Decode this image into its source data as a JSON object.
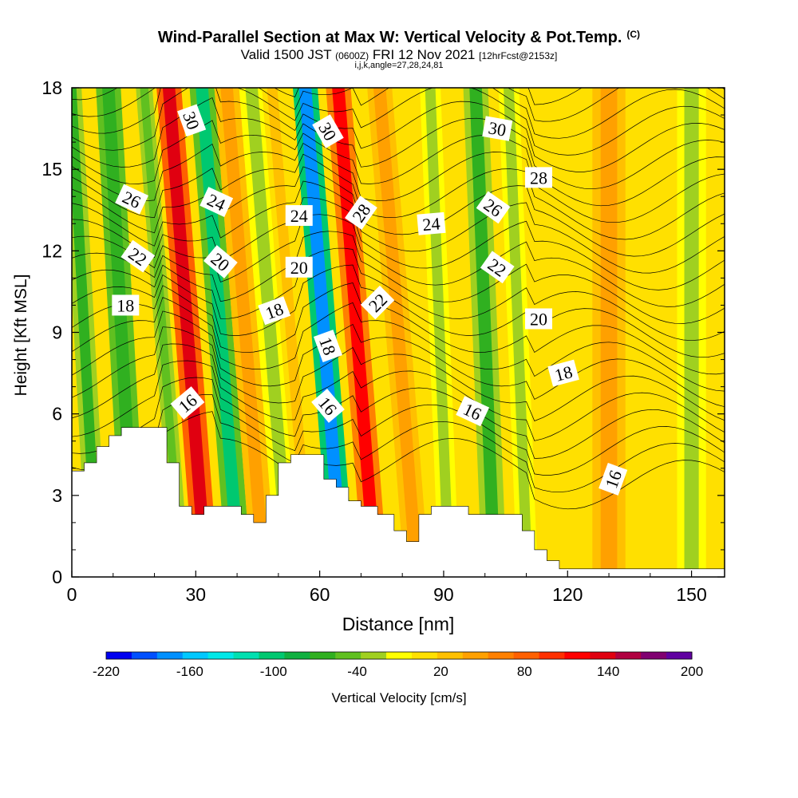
{
  "header": {
    "title": "Wind-Parallel Section at Max W: Vertical Velocity & Pot.Temp.",
    "title_badge": "(C)",
    "valid_prefix": "Valid 1500 JST",
    "valid_zulu": "(0600Z)",
    "valid_suffix": "FRI 12 Nov 2021",
    "forecast": "[12hrFcst@2153z]",
    "grid_info": "i,j,k,angle=27,28,24,81"
  },
  "chart_data": {
    "type": "heatmap",
    "xlabel": "Distance [nm]",
    "ylabel": "Height [Kft MSL]",
    "xlim": [
      0,
      158
    ],
    "ylim": [
      0,
      18
    ],
    "x_ticks": [
      "0",
      "30",
      "60",
      "90",
      "120",
      "150"
    ],
    "y_ticks": [
      "0",
      "3",
      "6",
      "9",
      "12",
      "15",
      "18"
    ],
    "x_tick_values": [
      0,
      30,
      60,
      90,
      120,
      150
    ],
    "y_tick_values": [
      0,
      3,
      6,
      9,
      12,
      15,
      18
    ],
    "colorbar": {
      "label": "Vertical Velocity [cm/s]",
      "tick_labels": [
        "-220",
        "-160",
        "-100",
        "-40",
        "20",
        "80",
        "140",
        "200"
      ],
      "tick_values": [
        -220,
        -160,
        -100,
        -40,
        20,
        80,
        140,
        200
      ],
      "min": -220,
      "max": 200,
      "colors": [
        "#0000f0",
        "#0050ff",
        "#0090ff",
        "#00c8ff",
        "#00e8e8",
        "#00e0b0",
        "#00c870",
        "#10b040",
        "#30b020",
        "#60c020",
        "#a0d020",
        "#ffff00",
        "#ffe000",
        "#ffc000",
        "#ffa000",
        "#ff8000",
        "#ff6000",
        "#ff3000",
        "#ff0000",
        "#e00010",
        "#b00040",
        "#800070",
        "#6000a0"
      ]
    },
    "velocity_bands": [
      {
        "center_x": 3,
        "width": 5,
        "value": -60
      },
      {
        "center_x": 12,
        "width": 6,
        "value": -70
      },
      {
        "center_x": 22,
        "width": 4,
        "value": -40
      },
      {
        "center_x": 28,
        "width": 6,
        "value": 140
      },
      {
        "center_x": 36,
        "width": 6,
        "value": -100
      },
      {
        "center_x": 42,
        "width": 6,
        "value": 40
      },
      {
        "center_x": 48,
        "width": 6,
        "value": -30
      },
      {
        "center_x": 53,
        "width": 5,
        "value": 30
      },
      {
        "center_x": 61,
        "width": 6,
        "value": -170
      },
      {
        "center_x": 69,
        "width": 6,
        "value": 120
      },
      {
        "center_x": 79,
        "width": 6,
        "value": 40
      },
      {
        "center_x": 89,
        "width": 5,
        "value": -30
      },
      {
        "center_x": 100,
        "width": 6,
        "value": -60
      },
      {
        "center_x": 108,
        "width": 5,
        "value": -30
      },
      {
        "center_x": 130,
        "width": 8,
        "value": 50
      },
      {
        "center_x": 150,
        "width": 7,
        "value": -30
      }
    ],
    "terrain": [
      [
        0,
        3.9
      ],
      [
        3,
        4.2
      ],
      [
        6,
        4.8
      ],
      [
        9,
        5.2
      ],
      [
        12,
        5.5
      ],
      [
        22,
        5.5
      ],
      [
        23,
        4.2
      ],
      [
        26,
        2.6
      ],
      [
        29,
        2.3
      ],
      [
        32,
        2.6
      ],
      [
        38,
        2.6
      ],
      [
        41,
        2.3
      ],
      [
        44,
        2.0
      ],
      [
        47,
        3.0
      ],
      [
        50,
        4.2
      ],
      [
        53,
        4.5
      ],
      [
        58,
        4.5
      ],
      [
        61,
        3.6
      ],
      [
        64,
        3.3
      ],
      [
        67,
        2.8
      ],
      [
        70,
        2.6
      ],
      [
        74,
        2.3
      ],
      [
        78,
        1.7
      ],
      [
        81,
        1.3
      ],
      [
        84,
        2.3
      ],
      [
        87,
        2.6
      ],
      [
        92,
        2.6
      ],
      [
        96,
        2.3
      ],
      [
        106,
        2.3
      ],
      [
        109,
        1.7
      ],
      [
        112,
        1.0
      ],
      [
        115,
        0.6
      ],
      [
        118,
        0.3
      ],
      [
        158,
        0.3
      ]
    ],
    "contour_labels": [
      {
        "text": "30",
        "x": 29,
        "y": 16.8,
        "angle": 70
      },
      {
        "text": "30",
        "x": 62,
        "y": 16.4,
        "angle": 60
      },
      {
        "text": "30",
        "x": 103,
        "y": 16.5,
        "angle": 10
      },
      {
        "text": "28",
        "x": 113,
        "y": 14.7,
        "angle": 0
      },
      {
        "text": "28",
        "x": 70,
        "y": 13.4,
        "angle": -55
      },
      {
        "text": "26",
        "x": 14.5,
        "y": 13.9,
        "angle": 25
      },
      {
        "text": "26",
        "x": 102,
        "y": 13.6,
        "angle": 35
      },
      {
        "text": "24",
        "x": 35,
        "y": 13.8,
        "angle": 25
      },
      {
        "text": "24",
        "x": 55,
        "y": 13.3,
        "angle": 0
      },
      {
        "text": "24",
        "x": 87,
        "y": 13.0,
        "angle": -5
      },
      {
        "text": "22",
        "x": 16,
        "y": 11.8,
        "angle": 35
      },
      {
        "text": "22",
        "x": 103,
        "y": 11.4,
        "angle": 35
      },
      {
        "text": "22",
        "x": 74,
        "y": 10.1,
        "angle": -45
      },
      {
        "text": "20",
        "x": 36,
        "y": 11.6,
        "angle": 40
      },
      {
        "text": "20",
        "x": 55,
        "y": 11.4,
        "angle": 0
      },
      {
        "text": "20",
        "x": 113,
        "y": 9.5,
        "angle": 0
      },
      {
        "text": "18",
        "x": 13,
        "y": 10.0,
        "angle": 0
      },
      {
        "text": "18",
        "x": 49,
        "y": 9.8,
        "angle": -20
      },
      {
        "text": "18",
        "x": 62,
        "y": 8.5,
        "angle": 70
      },
      {
        "text": "18",
        "x": 119,
        "y": 7.5,
        "angle": -15
      },
      {
        "text": "16",
        "x": 28,
        "y": 6.4,
        "angle": -40
      },
      {
        "text": "16",
        "x": 62,
        "y": 6.3,
        "angle": 50
      },
      {
        "text": "16",
        "x": 97,
        "y": 6.1,
        "angle": 25
      },
      {
        "text": "16",
        "x": 131,
        "y": 3.6,
        "angle": -70
      }
    ]
  }
}
